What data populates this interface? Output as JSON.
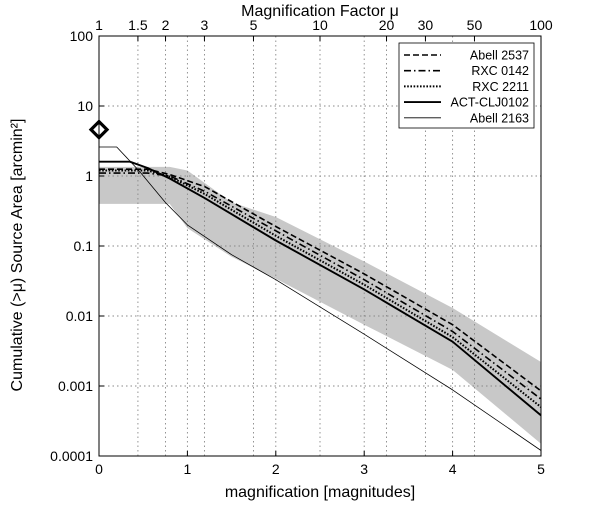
{
  "chart_data": {
    "type": "line",
    "title": "",
    "top_axis_label": "Magnification Factor μ",
    "xlabel": "magnification [magnitudes]",
    "ylabel": "Cumulative (>μ) Source Area [arcmin²]",
    "xlim": [
      0,
      5
    ],
    "ylim": [
      0.0001,
      100
    ],
    "y_scale": "log",
    "grid": true,
    "legend_position": "top-right",
    "x_ticks": [
      "0",
      "1",
      "2",
      "3",
      "4",
      "5"
    ],
    "y_ticks": [
      "0.0001",
      "0.001",
      "0.01",
      "0.1",
      "1",
      "10",
      "100"
    ],
    "top_ticks": [
      {
        "mu": 1,
        "label": "1"
      },
      {
        "mu": 1.5,
        "label": "1.5"
      },
      {
        "mu": 2,
        "label": "2"
      },
      {
        "mu": 3,
        "label": "3"
      },
      {
        "mu": 5,
        "label": "5"
      },
      {
        "mu": 10,
        "label": "10"
      },
      {
        "mu": 20,
        "label": "20"
      },
      {
        "mu": 30,
        "label": "30"
      },
      {
        "mu": 50,
        "label": "50"
      },
      {
        "mu": 100,
        "label": "100"
      }
    ],
    "series": [
      {
        "name": "Abell 2537",
        "style": "dashed",
        "width": 1.6,
        "x": [
          0,
          0.55,
          0.8,
          1.2,
          2,
          3,
          4,
          5
        ],
        "y": [
          1.25,
          1.25,
          1.05,
          0.7,
          0.19,
          0.04,
          0.0075,
          0.00085
        ]
      },
      {
        "name": "RXC 0142",
        "style": "dashdot",
        "width": 1.6,
        "x": [
          0,
          0.55,
          0.8,
          1.2,
          2,
          3,
          4,
          5
        ],
        "y": [
          1.1,
          1.1,
          1.0,
          0.6,
          0.165,
          0.033,
          0.006,
          0.00065
        ]
      },
      {
        "name": "RXC 2211",
        "style": "dotted",
        "width": 2.0,
        "x": [
          0,
          0.55,
          0.8,
          1.2,
          2,
          3,
          4,
          5
        ],
        "y": [
          1.2,
          1.2,
          0.98,
          0.55,
          0.14,
          0.028,
          0.005,
          0.0005
        ]
      },
      {
        "name": "ACT-CLJ0102",
        "style": "solid",
        "width": 1.9,
        "x": [
          0,
          0.35,
          0.55,
          0.8,
          1.2,
          2,
          3,
          4,
          5
        ],
        "y": [
          1.6,
          1.6,
          1.3,
          0.92,
          0.48,
          0.12,
          0.024,
          0.0043,
          0.00038
        ]
      },
      {
        "name": "Abell 2163",
        "style": "solid",
        "width": 0.8,
        "x": [
          0,
          0.2,
          0.45,
          0.75,
          1.0,
          1.5,
          2,
          3,
          4,
          5
        ],
        "y": [
          2.6,
          2.6,
          1.2,
          0.42,
          0.2,
          0.075,
          0.033,
          0.0055,
          0.00088,
          0.00012
        ]
      }
    ],
    "shaded_band": {
      "color": "#c8c8c8",
      "x": [
        0,
        0.8,
        1.0,
        1.5,
        2,
        3,
        4,
        5
      ],
      "upper": [
        1.35,
        1.35,
        1.2,
        0.42,
        0.26,
        0.06,
        0.013,
        0.0022
      ],
      "lower": [
        0.4,
        0.4,
        0.18,
        0.07,
        0.034,
        0.0075,
        0.0017,
        0.00015
      ]
    },
    "marker": {
      "shape": "diamond",
      "x": 0,
      "y": 4.6
    }
  }
}
